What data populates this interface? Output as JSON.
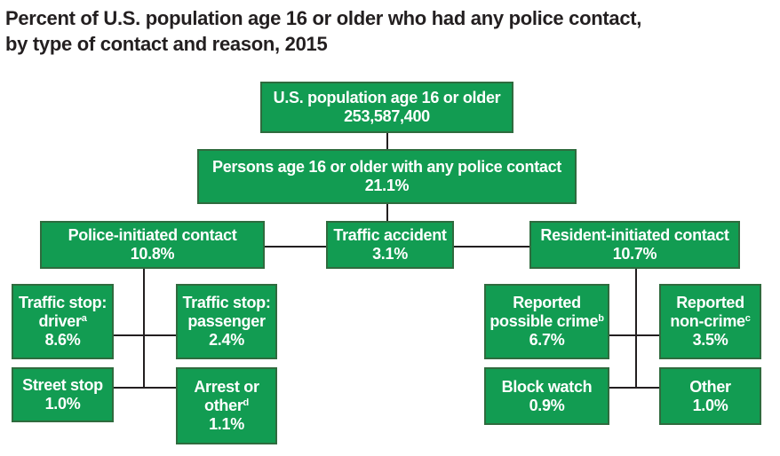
{
  "title": {
    "line1": "Percent of U.S. population age 16 or older who had any police contact,",
    "line2": "by type of contact and reason, 2015"
  },
  "colors": {
    "box_fill": "#129c52",
    "box_border": "#2f6b3e",
    "line": "#231f20",
    "text": "#ffffff"
  },
  "nodes": {
    "population": {
      "label": "U.S. population age 16 or older",
      "value": "253,587,400"
    },
    "any_contact": {
      "label": "Persons age 16 or older with any police contact",
      "value": "21.1%"
    },
    "police_initiated": {
      "label": "Police-initiated contact",
      "value": "10.8%"
    },
    "traffic_accident": {
      "label": "Traffic accident",
      "value": "3.1%"
    },
    "resident_initiated": {
      "label": "Resident-initiated contact",
      "value": "10.7%"
    },
    "traffic_stop_driver": {
      "label1": "Traffic stop:",
      "label2": "driver",
      "note": "a",
      "value": "8.6%"
    },
    "traffic_stop_passenger": {
      "label1": "Traffic stop:",
      "label2": "passenger",
      "value": "2.4%"
    },
    "street_stop": {
      "label": "Street stop",
      "value": "1.0%"
    },
    "arrest_or_other": {
      "label1": "Arrest or",
      "label2": "other",
      "note": "d",
      "value": "1.1%"
    },
    "reported_possible_crime": {
      "label1": "Reported",
      "label2": "possible crime",
      "note": "b",
      "value": "6.7%"
    },
    "reported_non_crime": {
      "label1": "Reported",
      "label2": "non-crime",
      "note": "c",
      "value": "3.5%"
    },
    "block_watch": {
      "label": "Block watch",
      "value": "0.9%"
    },
    "other": {
      "label": "Other",
      "value": "1.0%"
    }
  }
}
